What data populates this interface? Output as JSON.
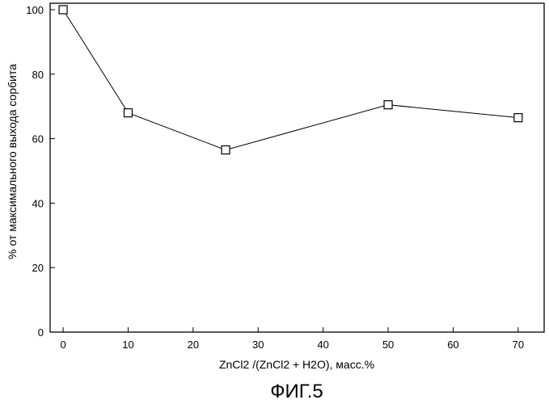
{
  "chart_data": {
    "type": "line",
    "title": "",
    "xlabel": "ZnCl2 /(ZnCl2 + H2O), масс.%",
    "ylabel": "% от максимального выхода сорбита",
    "xlim": [
      -2,
      74
    ],
    "ylim": [
      0,
      102
    ],
    "x_ticks": [
      0,
      10,
      20,
      30,
      40,
      50,
      60,
      70
    ],
    "y_ticks": [
      0,
      20,
      40,
      60,
      80,
      100
    ],
    "grid": false,
    "marker": "open-square",
    "series": [
      {
        "x": [
          0,
          10,
          25,
          50,
          70
        ],
        "y": [
          100,
          68,
          56.5,
          70.5,
          66.5
        ]
      }
    ]
  },
  "caption": "ФИГ.5"
}
